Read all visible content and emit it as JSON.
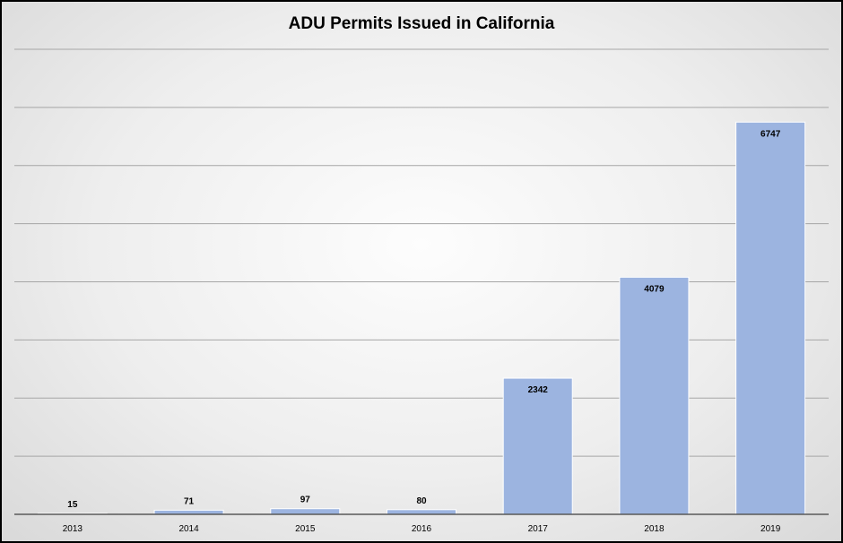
{
  "chart_data": {
    "type": "bar",
    "title": "ADU Permits Issued in California",
    "categories": [
      "2013",
      "2014",
      "2015",
      "2016",
      "2017",
      "2018",
      "2019"
    ],
    "values": [
      15,
      71,
      97,
      80,
      2342,
      4079,
      6747
    ],
    "xlabel": "",
    "ylabel": "",
    "ylim": [
      0,
      8000
    ],
    "grid": true,
    "legend": "none",
    "colors": {
      "bar": "#9cb4e0",
      "bar_stroke": "#ffffff",
      "grid": "#a6a6a6",
      "axis": "#595959"
    }
  }
}
